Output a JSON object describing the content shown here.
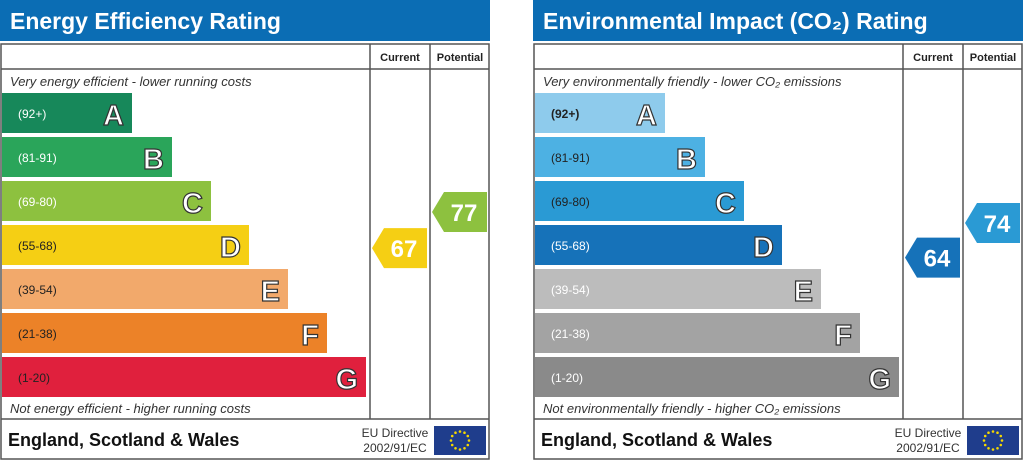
{
  "chart_data": [
    {
      "type": "table",
      "title": "Energy Efficiency Rating",
      "columns": [
        "Current",
        "Potential"
      ],
      "top_note": "Very energy efficient - lower running costs",
      "bottom_note": "Not energy efficient - higher running costs",
      "bands": [
        {
          "letter": "A",
          "range": "(92+)",
          "color": "#17885a"
        },
        {
          "letter": "B",
          "range": "(81-91)",
          "color": "#2aa55a"
        },
        {
          "letter": "C",
          "range": "(69-80)",
          "color": "#8dc13f"
        },
        {
          "letter": "D",
          "range": "(55-68)",
          "color": "#f5cf14"
        },
        {
          "letter": "E",
          "range": "(39-54)",
          "color": "#f2a96b"
        },
        {
          "letter": "F",
          "range": "(21-38)",
          "color": "#ec8228"
        },
        {
          "letter": "G",
          "range": "(1-20)",
          "color": "#e0203d"
        }
      ],
      "current": {
        "value": "67",
        "band": "D"
      },
      "potential": {
        "value": "77",
        "band": "C"
      },
      "footer": "England, Scotland & Wales",
      "directive_line1": "EU Directive",
      "directive_line2": "2002/91/EC"
    },
    {
      "type": "table",
      "title": "Environmental Impact (CO₂) Rating",
      "columns": [
        "Current",
        "Potential"
      ],
      "top_note": "Very environmentally friendly - lower CO₂ emissions",
      "bottom_note": "Not environmentally friendly - higher CO₂ emissions",
      "bands": [
        {
          "letter": "A",
          "range": "(92+)",
          "color": "#8ecbec"
        },
        {
          "letter": "B",
          "range": "(81-91)",
          "color": "#4db1e3"
        },
        {
          "letter": "C",
          "range": "(69-80)",
          "color": "#2a9ad4"
        },
        {
          "letter": "D",
          "range": "(55-68)",
          "color": "#1672b9"
        },
        {
          "letter": "E",
          "range": "(39-54)",
          "color": "#bcbcbc"
        },
        {
          "letter": "F",
          "range": "(21-38)",
          "color": "#a3a3a3"
        },
        {
          "letter": "G",
          "range": "(1-20)",
          "color": "#8a8a8a"
        }
      ],
      "current": {
        "value": "64",
        "band": "D"
      },
      "potential": {
        "value": "74",
        "band": "C"
      },
      "footer": "England, Scotland & Wales",
      "directive_line1": "EU Directive",
      "directive_line2": "2002/91/EC"
    }
  ],
  "header_color": "#0b6db4"
}
